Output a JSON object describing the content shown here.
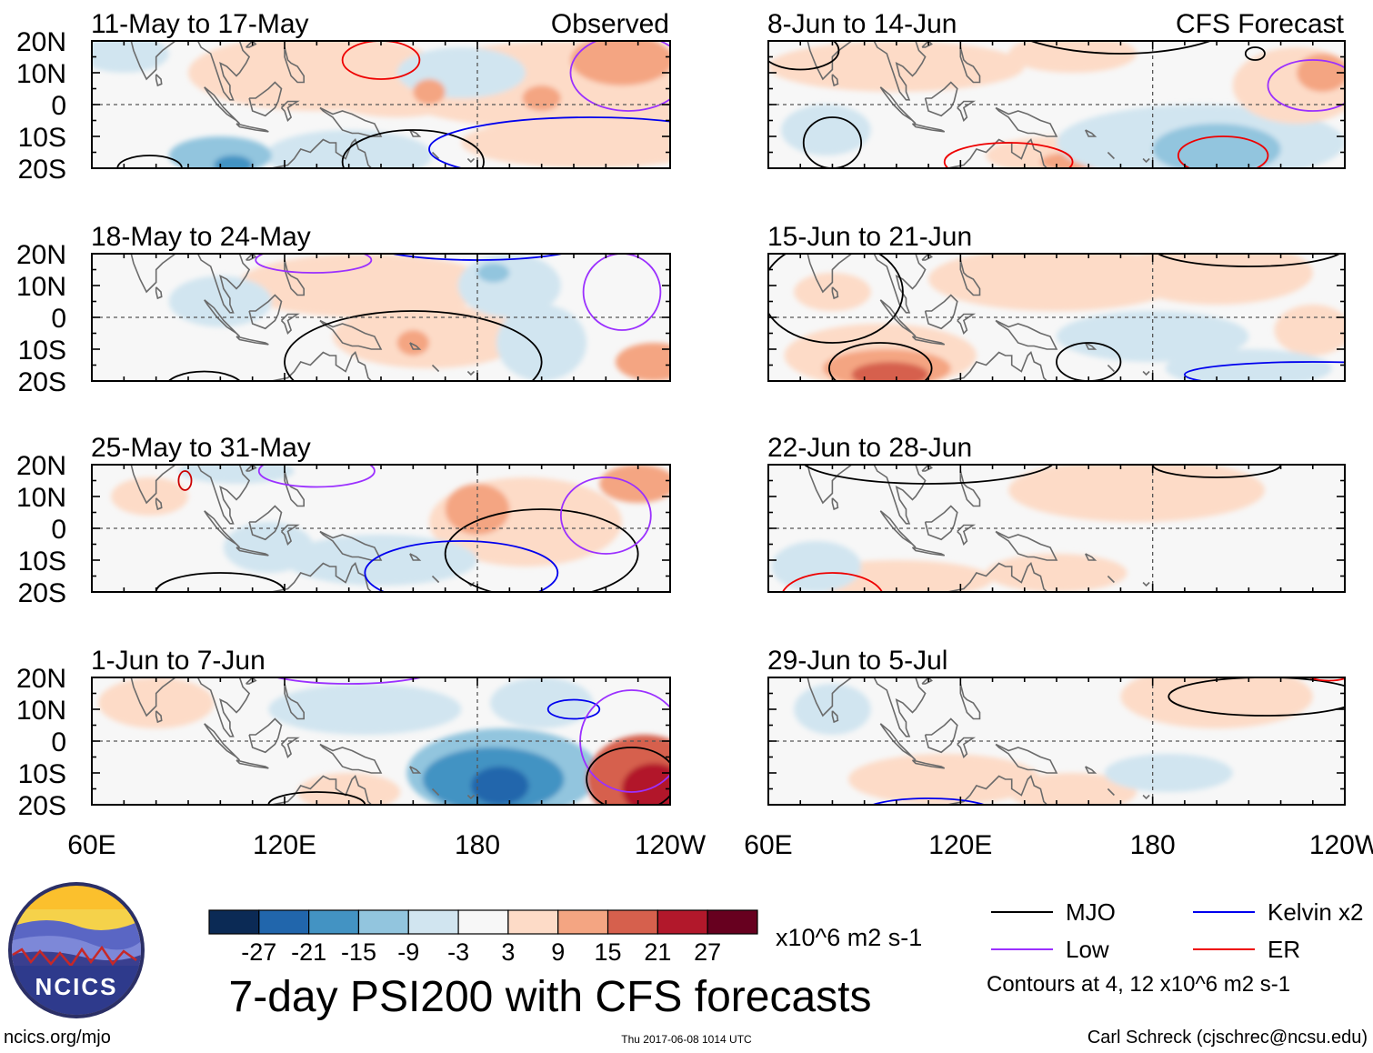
{
  "observed_label": "Observed",
  "forecast_label": "CFS Forecast",
  "chart_data": {
    "type": "heatmap",
    "title": "7-day PSI200 with CFS forecasts",
    "variable": "200 hPa streamfunction anomaly (PSI200)",
    "units": "x10^6 m2 s-1",
    "x_ticks": [
      "60E",
      "120E",
      "180",
      "120W"
    ],
    "y_ticks": [
      "20N",
      "10N",
      "0",
      "10S",
      "20S"
    ],
    "xlim": [
      60,
      240
    ],
    "ylim": [
      -20,
      20
    ],
    "colorbar": {
      "levels": [
        "-27",
        "-21",
        "-15",
        "-9",
        "-3",
        "3",
        "9",
        "15",
        "21",
        "27"
      ],
      "colors": [
        "#0b2a55",
        "#2166ac",
        "#4393c3",
        "#92c5de",
        "#d1e5f0",
        "#f7f7f7",
        "#fddbc7",
        "#f4a582",
        "#d6604d",
        "#b2182b",
        "#67001f"
      ]
    },
    "legend": [
      {
        "name": "MJO",
        "color": "#000000"
      },
      {
        "name": "Kelvin x2",
        "color": "#0000ee"
      },
      {
        "name": "Low",
        "color": "#9b30ff"
      },
      {
        "name": "ER",
        "color": "#ee0000"
      }
    ],
    "contour_note": "Contours at 4, 12 x10^6 m2 s-1",
    "panels": [
      {
        "title": "11-May to 17-May",
        "group": "Observed"
      },
      {
        "title": "18-May to 24-May",
        "group": "Observed"
      },
      {
        "title": "25-May to 31-May",
        "group": "Observed"
      },
      {
        "title": "1-Jun to 7-Jun",
        "group": "Observed"
      },
      {
        "title": "8-Jun to 14-Jun",
        "group": "CFS Forecast"
      },
      {
        "title": "15-Jun to 21-Jun",
        "group": "CFS Forecast"
      },
      {
        "title": "22-Jun to 28-Jun",
        "group": "CFS Forecast"
      },
      {
        "title": "29-Jun to 5-Jul",
        "group": "CFS Forecast"
      }
    ]
  },
  "logo_text": "NCICS",
  "footer": {
    "left": "ncics.org/mjo",
    "center": "Thu 2017-06-08 1014 UTC",
    "right": "Carl Schreck (cjschrec@ncsu.edu)"
  }
}
